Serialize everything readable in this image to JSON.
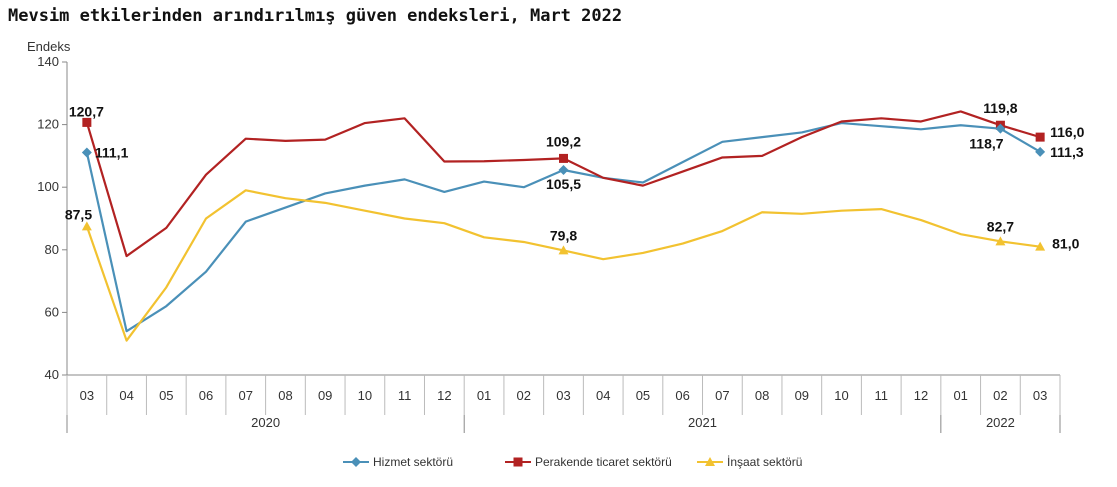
{
  "title": "Mevsim etkilerinden arındırılmış güven endeksleri, Mart 2022",
  "chart_data": {
    "type": "line",
    "ylabel": "Endeks",
    "ylim": [
      40,
      140
    ],
    "yticks": [
      40,
      60,
      80,
      100,
      120,
      140
    ],
    "categories": [
      "03",
      "04",
      "05",
      "06",
      "07",
      "08",
      "09",
      "10",
      "11",
      "12",
      "01",
      "02",
      "03",
      "04",
      "05",
      "06",
      "07",
      "08",
      "09",
      "10",
      "11",
      "12",
      "01",
      "02",
      "03"
    ],
    "years": [
      {
        "label": "2020",
        "start": 0,
        "end": 9
      },
      {
        "label": "2021",
        "start": 10,
        "end": 21
      },
      {
        "label": "2022",
        "start": 22,
        "end": 24
      }
    ],
    "grid": false,
    "legend_position": "bottom",
    "series": [
      {
        "name": "Hizmet sektörü",
        "color": "#4A90B8",
        "marker": "diamond",
        "values": [
          111.1,
          54.0,
          62.0,
          73.0,
          89.0,
          93.5,
          98.0,
          100.5,
          102.5,
          98.5,
          101.8,
          100.0,
          105.5,
          103.0,
          101.5,
          108.0,
          114.5,
          116.0,
          117.5,
          120.5,
          119.5,
          118.5,
          119.8,
          118.7,
          111.3
        ]
      },
      {
        "name": "Perakende ticaret sektörü",
        "color": "#B22222",
        "marker": "square",
        "values": [
          120.7,
          78.0,
          87.0,
          104.0,
          115.5,
          114.8,
          115.2,
          120.5,
          122.0,
          108.2,
          108.3,
          108.7,
          109.2,
          103.0,
          100.5,
          105.0,
          109.5,
          110.0,
          116.0,
          121.0,
          122.0,
          121.0,
          124.2,
          119.8,
          116.0
        ]
      },
      {
        "name": "İnşaat sektörü",
        "color": "#F2C230",
        "marker": "triangle",
        "values": [
          87.5,
          51.0,
          68.0,
          90.0,
          99.0,
          96.5,
          95.0,
          92.5,
          90.0,
          88.5,
          84.0,
          82.5,
          79.8,
          77.0,
          79.0,
          82.0,
          86.0,
          92.0,
          91.5,
          92.5,
          93.0,
          89.5,
          85.0,
          82.7,
          81.0
        ]
      }
    ],
    "annotations": [
      {
        "series": 1,
        "index": 0,
        "text": "120,7"
      },
      {
        "series": 0,
        "index": 0,
        "text": "111,1"
      },
      {
        "series": 2,
        "index": 0,
        "text": "87,5"
      },
      {
        "series": 1,
        "index": 12,
        "text": "109,2"
      },
      {
        "series": 0,
        "index": 12,
        "text": "105,5"
      },
      {
        "series": 2,
        "index": 12,
        "text": "79,8"
      },
      {
        "series": 1,
        "index": 23,
        "text": "119,8"
      },
      {
        "series": 0,
        "index": 23,
        "text": "118,7"
      },
      {
        "series": 1,
        "index": 24,
        "text": "116,0"
      },
      {
        "series": 0,
        "index": 24,
        "text": "111,3"
      },
      {
        "series": 2,
        "index": 23,
        "text": "82,7"
      },
      {
        "series": 2,
        "index": 24,
        "text": "81,0"
      }
    ]
  }
}
